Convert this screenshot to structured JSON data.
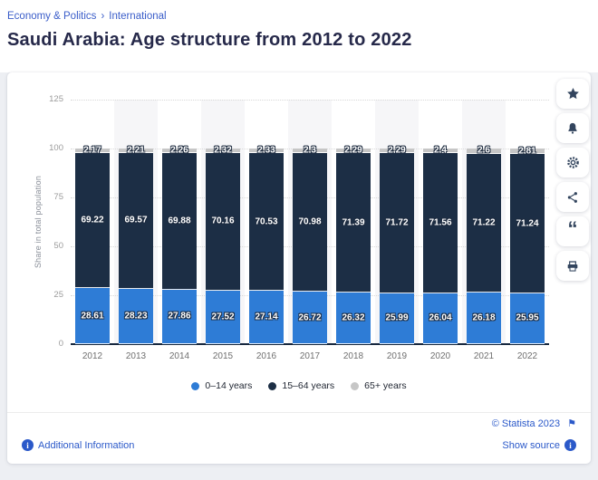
{
  "breadcrumb": {
    "items": [
      {
        "label": "Economy & Politics"
      },
      {
        "label": "International"
      }
    ],
    "separator": "›"
  },
  "page_title": "Saudi Arabia: Age structure from 2012 to 2022",
  "chart_data": {
    "type": "bar",
    "stacked": true,
    "title": "Saudi Arabia: Age structure from 2012 to 2022",
    "ylabel": "Share in total population",
    "xlabel": "",
    "ylim": [
      0,
      125
    ],
    "yticks": [
      0,
      25,
      50,
      75,
      100,
      125
    ],
    "grid": "horizontal-dotted",
    "legend_position": "bottom",
    "categories": [
      "2012",
      "2013",
      "2014",
      "2015",
      "2016",
      "2017",
      "2018",
      "2019",
      "2020",
      "2021",
      "2022"
    ],
    "series": [
      {
        "name": "0–14 years",
        "color": "#2e7cd6",
        "values": [
          28.61,
          28.23,
          27.86,
          27.52,
          27.14,
          26.72,
          26.32,
          25.99,
          26.04,
          26.18,
          25.95
        ],
        "labels": [
          "28.61",
          "28.23",
          "27.86",
          "27.52",
          "27.14",
          "26.72",
          "26.32",
          "25.99",
          "26.04",
          "26.18",
          "25.95"
        ]
      },
      {
        "name": "15–64 years",
        "color": "#1c2e45",
        "values": [
          69.22,
          69.57,
          69.88,
          70.16,
          70.53,
          70.98,
          71.39,
          71.72,
          71.56,
          71.22,
          71.24
        ],
        "labels": [
          "69.22",
          "69.57",
          "69.88",
          "70.16",
          "70.53",
          "70.98",
          "71.39",
          "71.72",
          "71.56",
          "71.22",
          "71.24"
        ]
      },
      {
        "name": "65+ years",
        "color": "#c6c6c6",
        "values": [
          2.17,
          2.21,
          2.26,
          2.32,
          2.33,
          2.3,
          2.29,
          2.29,
          2.4,
          2.6,
          2.81
        ],
        "labels": [
          "2.17",
          "2.21",
          "2.26",
          "2.32",
          "2.33",
          "2.3",
          "2.29",
          "2.29",
          "2.4",
          "2.6",
          "2.81"
        ]
      }
    ]
  },
  "toolbar": {
    "buttons": [
      {
        "name": "favorite-button",
        "icon": "star-icon"
      },
      {
        "name": "alerts-button",
        "icon": "bell-icon"
      },
      {
        "name": "settings-button",
        "icon": "gear-icon"
      },
      {
        "name": "share-button",
        "icon": "share-icon"
      },
      {
        "name": "cite-button",
        "icon": "quote-icon"
      },
      {
        "name": "print-button",
        "icon": "printer-icon"
      }
    ]
  },
  "footer": {
    "additional_information": "Additional Information",
    "copyright": "© Statista 2023",
    "show_source": "Show source"
  },
  "colors": {
    "link_blue": "#3a5dc9",
    "title_navy": "#26294a",
    "band": "#f6f6f8",
    "axis_text": "#9b9b9b"
  }
}
